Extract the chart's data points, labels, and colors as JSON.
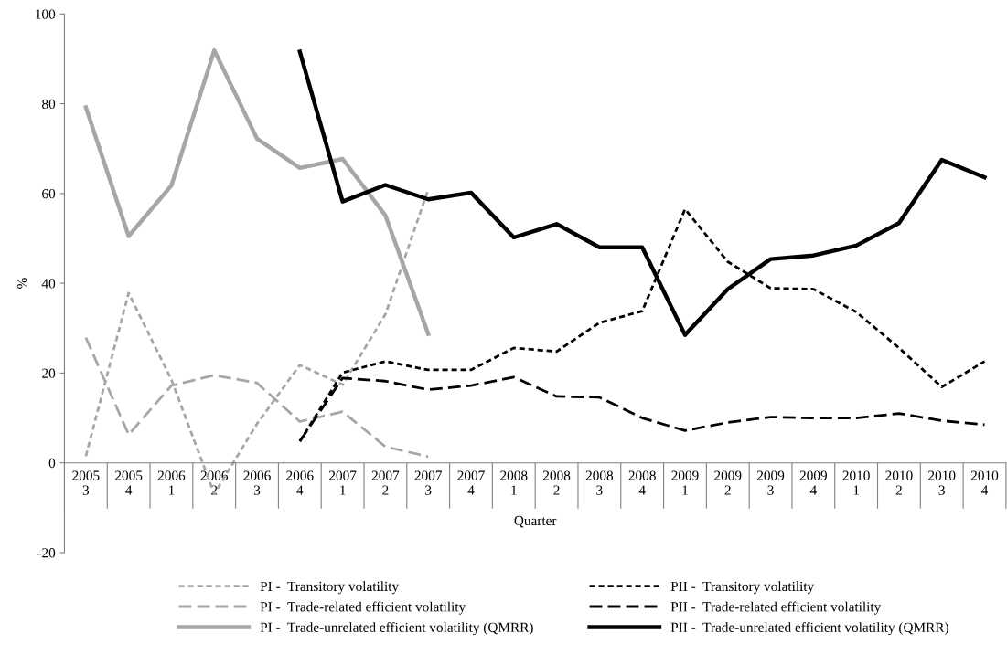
{
  "chart_data": {
    "type": "line",
    "xlabel": "Quarter",
    "ylabel": "%",
    "categories": [
      "2005\n3",
      "2005\n4",
      "2006\n1",
      "2006\n2",
      "2006\n3",
      "2006\n4",
      "2007\n1",
      "2007\n2",
      "2007\n3",
      "2007\n4",
      "2008\n1",
      "2008\n2",
      "2008\n3",
      "2008\n4",
      "2009\n1",
      "2009\n2",
      "2009\n3",
      "2009\n4",
      "2010\n1",
      "2010\n2",
      "2010\n3",
      "2010\n4"
    ],
    "ylim": [
      -20,
      100
    ],
    "yticks": [
      -20,
      0,
      20,
      40,
      60,
      80,
      100
    ],
    "grid": false,
    "legend": "bottom",
    "series": [
      {
        "name": "PI -  Transitory volatility",
        "color": "#a6a6a6",
        "line_style": "dotted",
        "values": [
          1.5,
          37.8,
          18.5,
          -6.9,
          8.7,
          21.8,
          17.4,
          33.1,
          60.9,
          null,
          null,
          null,
          null,
          null,
          null,
          null,
          null,
          null,
          null,
          null,
          null,
          null
        ]
      },
      {
        "name": "PI -  Trade-related efficient volatility",
        "color": "#a6a6a6",
        "line_style": "dashed",
        "values": [
          27.9,
          6.3,
          17.2,
          19.5,
          17.8,
          9.2,
          11.4,
          3.6,
          1.4,
          null,
          null,
          null,
          null,
          null,
          null,
          null,
          null,
          null,
          null,
          null,
          null,
          null
        ]
      },
      {
        "name": "PI -  Trade-unrelated efficient volatility (QMRR)",
        "color": "#a6a6a6",
        "line_style": "solid",
        "values": [
          79.2,
          50.5,
          61.8,
          91.9,
          72.2,
          65.7,
          67.7,
          55.1,
          28.7,
          null,
          null,
          null,
          null,
          null,
          null,
          null,
          null,
          null,
          null,
          null,
          null,
          null
        ]
      },
      {
        "name": "PII -  Transitory volatility",
        "color": "#000000",
        "line_style": "dotted",
        "values": [
          null,
          null,
          null,
          null,
          null,
          4.8,
          20.1,
          22.6,
          20.7,
          20.7,
          25.6,
          24.8,
          31.2,
          33.8,
          56.5,
          44.8,
          38.9,
          38.7,
          33.6,
          25.6,
          16.9,
          22.6
        ]
      },
      {
        "name": "PII -  Trade-related efficient volatility",
        "color": "#000000",
        "line_style": "dashed",
        "values": [
          null,
          null,
          null,
          null,
          null,
          4.8,
          18.9,
          18.2,
          16.3,
          17.2,
          19.1,
          14.8,
          14.6,
          10.0,
          7.2,
          9.0,
          10.2,
          10.0,
          10.0,
          11.0,
          9.4,
          8.5
        ]
      },
      {
        "name": "PII -  Trade-unrelated efficient volatility (QMRR)",
        "color": "#000000",
        "line_style": "solid",
        "values": [
          null,
          null,
          null,
          null,
          null,
          91.6,
          58.2,
          61.9,
          58.7,
          60.2,
          50.2,
          53.2,
          48.0,
          48.0,
          28.5,
          38.7,
          45.4,
          46.2,
          48.4,
          53.4,
          67.5,
          63.6
        ]
      }
    ]
  }
}
